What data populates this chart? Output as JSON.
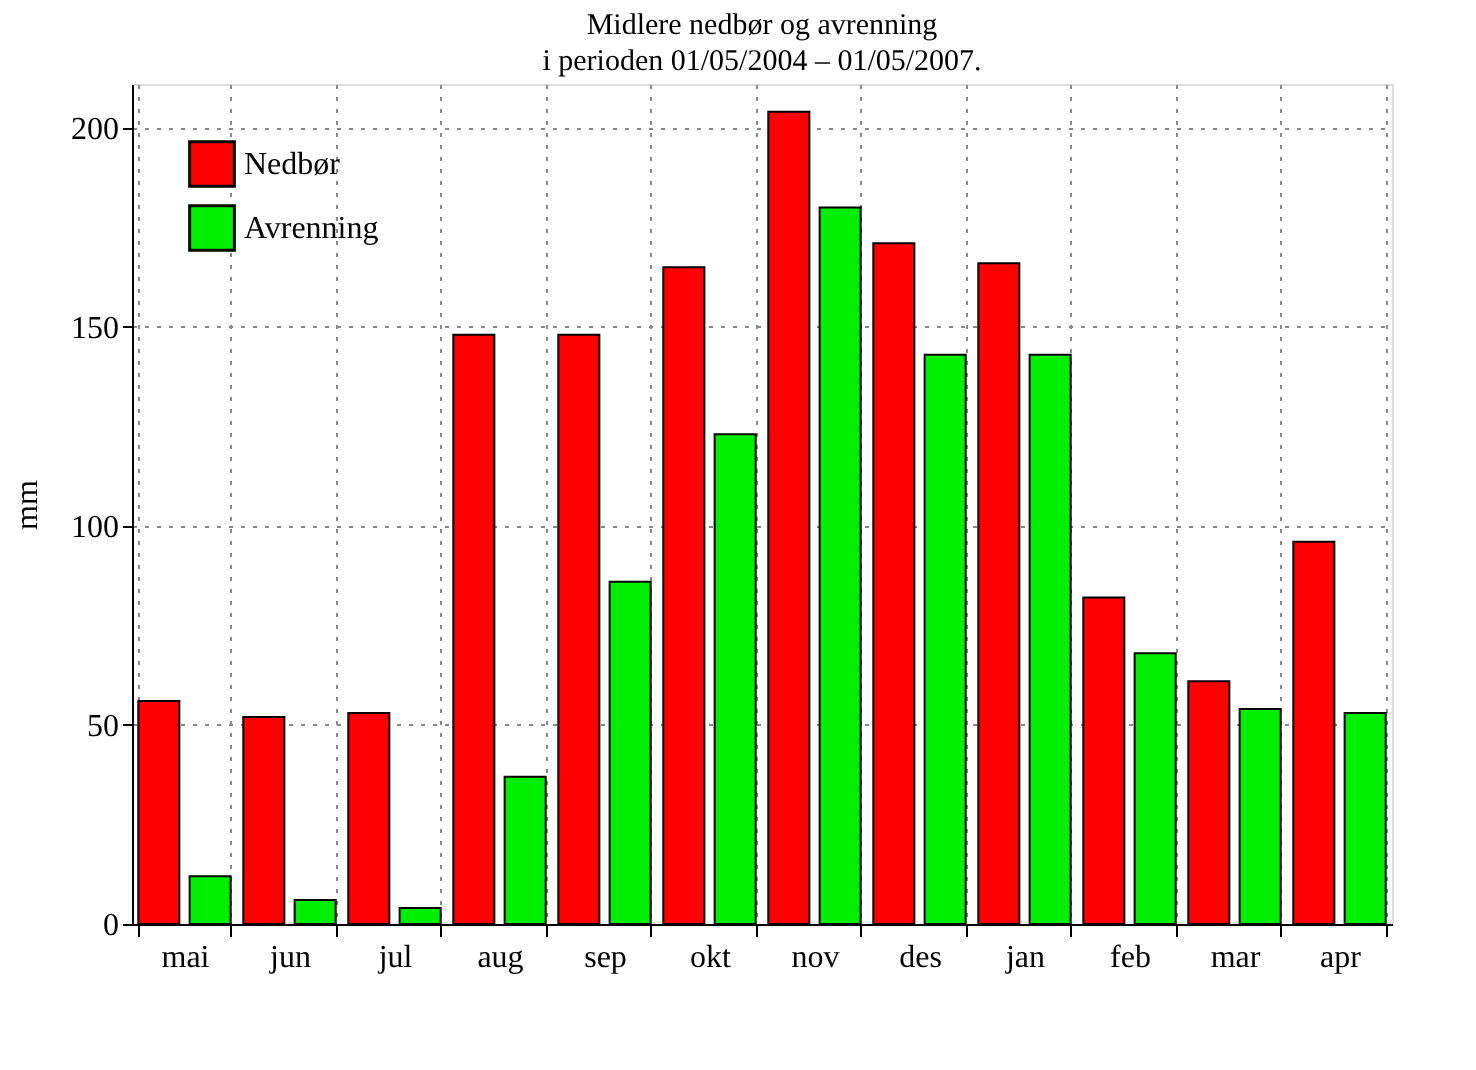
{
  "chart_data": {
    "type": "bar",
    "title": "Midlere nedbør og avrenning",
    "subtitle": "i perioden 01/05/2004 – 01/05/2007.",
    "ylabel": "mm",
    "categories": [
      "mai",
      "jun",
      "jul",
      "aug",
      "sep",
      "okt",
      "nov",
      "des",
      "jan",
      "feb",
      "mar",
      "apr"
    ],
    "series": [
      {
        "name": "Nedbør",
        "color": "#ff0000",
        "values": [
          56,
          52,
          53,
          148,
          148,
          165,
          204,
          171,
          166,
          82,
          61,
          96
        ]
      },
      {
        "name": "Avrenning",
        "color": "#00ee00",
        "values": [
          12,
          6,
          4,
          37,
          86,
          123,
          180,
          143,
          143,
          68,
          54,
          53
        ]
      }
    ],
    "ylim": [
      0,
      211
    ],
    "yticks": [
      0,
      50,
      100,
      150,
      200
    ],
    "grid": true,
    "legend": "top left"
  }
}
